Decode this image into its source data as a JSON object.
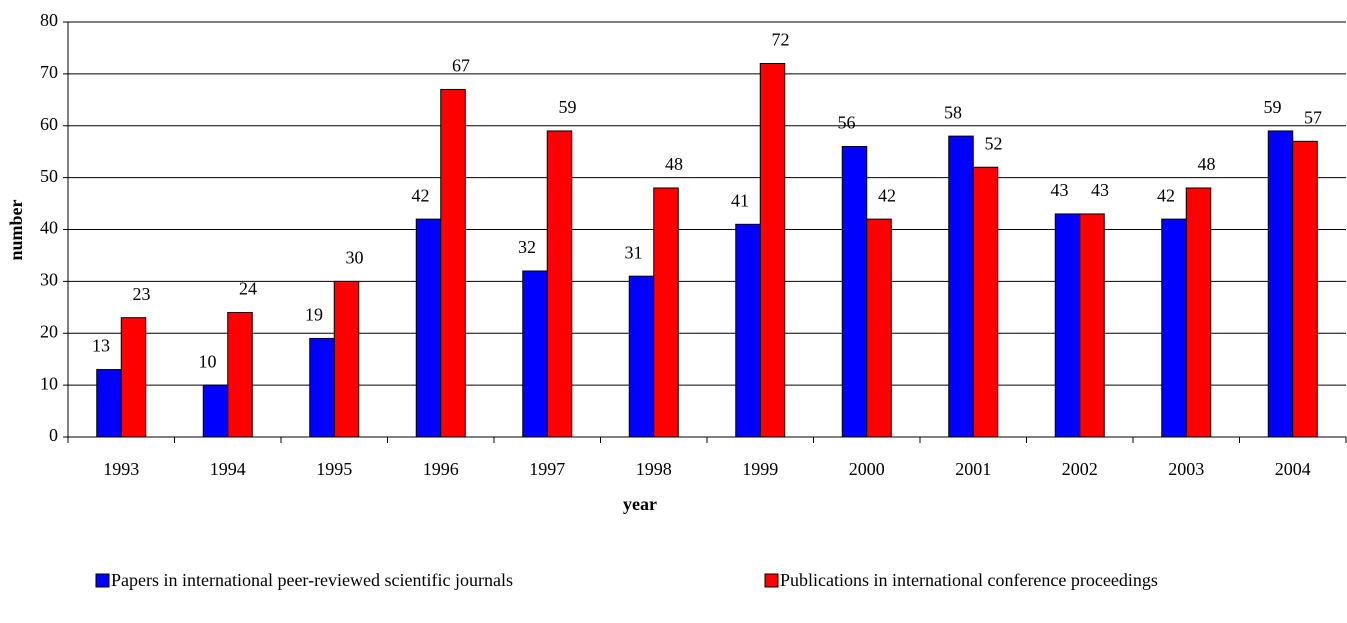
{
  "chart_data": {
    "type": "bar",
    "x_label": "year",
    "y_label": "number",
    "categories": [
      "1993",
      "1994",
      "1995",
      "1996",
      "1997",
      "1998",
      "1999",
      "2000",
      "2001",
      "2002",
      "2003",
      "2004"
    ],
    "series": [
      {
        "name": "Papers in international peer-reviewed scientific journals",
        "color": "#0000ff",
        "values": [
          13,
          10,
          19,
          42,
          32,
          31,
          41,
          56,
          58,
          43,
          42,
          59
        ]
      },
      {
        "name": "Publications in international conference proceedings",
        "color": "#ff0000",
        "values": [
          23,
          24,
          30,
          67,
          59,
          48,
          72,
          42,
          52,
          43,
          48,
          57
        ]
      }
    ],
    "ylim": [
      0,
      80
    ],
    "yticks": [
      0,
      10,
      20,
      30,
      40,
      50,
      60,
      70,
      80
    ],
    "grid": true
  }
}
